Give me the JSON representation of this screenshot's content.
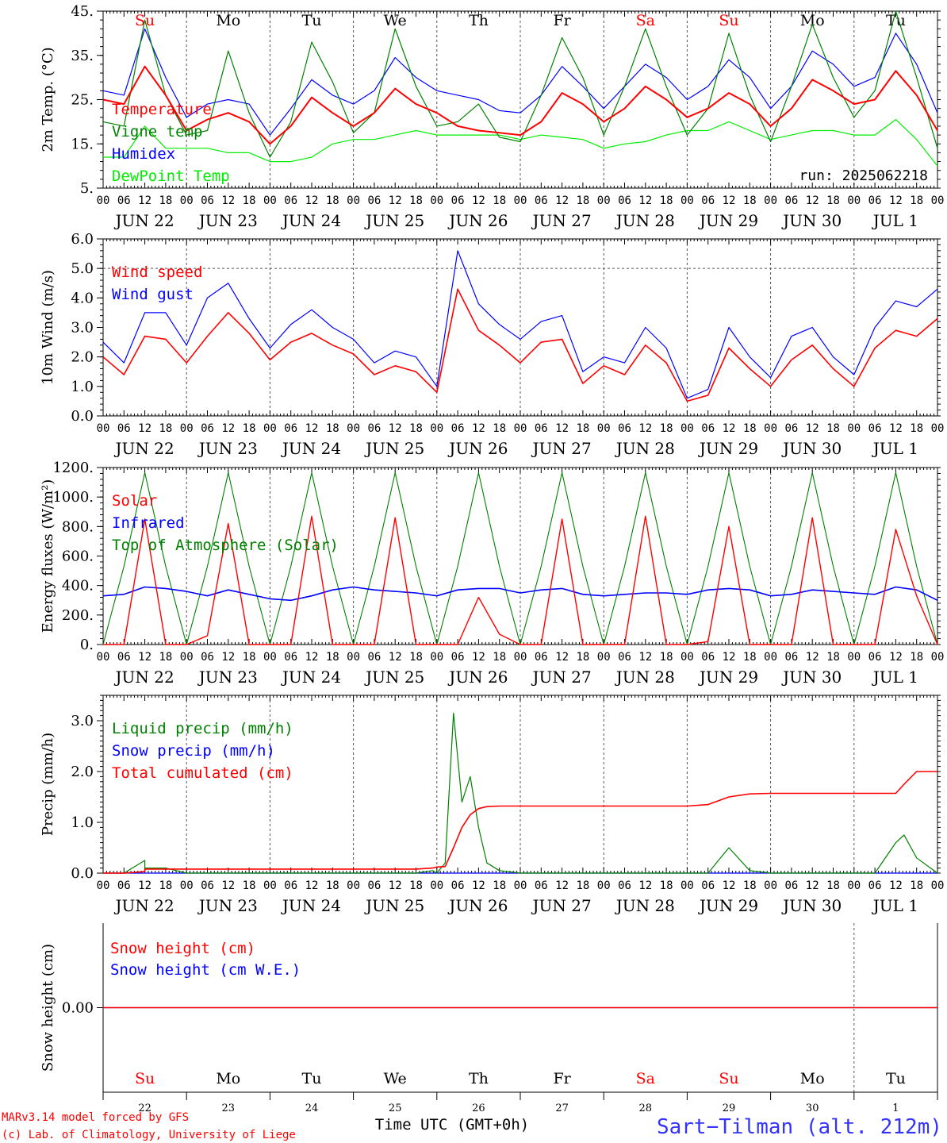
{
  "days": {
    "weekdays": [
      "Su",
      "Mo",
      "Tu",
      "We",
      "Th",
      "Fr",
      "Sa",
      "Su",
      "Mo",
      "Tu"
    ],
    "weekday_colors": [
      "#ff0000",
      "#000000",
      "#000000",
      "#000000",
      "#000000",
      "#000000",
      "#ff0000",
      "#ff0000",
      "#000000",
      "#000000"
    ],
    "dates": [
      "JUN 22",
      "JUN 23",
      "JUN 24",
      "JUN 25",
      "JUN 26",
      "JUN 27",
      "JUN 28",
      "JUN 29",
      "JUN 30",
      "JUL  1"
    ],
    "day_numbers": [
      "22",
      "23",
      "24",
      "25",
      "26",
      "27",
      "28",
      "29",
      "30",
      "1"
    ],
    "hour_ticks": [
      "00",
      "06",
      "12",
      "18"
    ],
    "hour_end": "00"
  },
  "footer": {
    "model_line": "MARv3.14 model forced by GFS",
    "copyright_line": "(c) Lab. of Climatology, University of Liege",
    "x_title": "Time UTC (GMT+0h)",
    "location": "Sart−Tilman (alt. 212m)"
  },
  "colors": {
    "red": "#ff0000",
    "green": "#008000",
    "blue": "#0000ff",
    "lightgreen": "#00ee00",
    "grid": "#555555",
    "axis": "#000000"
  },
  "chart_data": [
    {
      "type": "line",
      "id": "temp",
      "ylabel": "2m Temp. (°C)",
      "ylim": [
        5,
        45
      ],
      "yticks": [
        5,
        15,
        25,
        35,
        45
      ],
      "ytick_labels": [
        "5.",
        "15.",
        "25.",
        "35.",
        "45."
      ],
      "minor_y_step": 2,
      "annotation": "run: 2025062218",
      "x": [
        0,
        0.25,
        0.5,
        0.75,
        1,
        1.25,
        1.5,
        1.75,
        2,
        2.25,
        2.5,
        2.75,
        3,
        3.25,
        3.5,
        3.75,
        4,
        4.25,
        4.5,
        4.75,
        5,
        5.25,
        5.5,
        5.75,
        6,
        6.25,
        6.5,
        6.75,
        7,
        7.25,
        7.5,
        7.75,
        8,
        8.25,
        8.5,
        8.75,
        9,
        9.25,
        9.5,
        9.75,
        10
      ],
      "series": [
        {
          "name": "Temperature",
          "color": "#ff0000",
          "width": 2,
          "values": [
            25,
            24,
            32.5,
            26,
            18,
            20.5,
            22,
            20,
            15,
            19,
            25.5,
            22,
            19,
            22,
            27.5,
            24,
            22,
            19,
            18,
            17.5,
            17,
            20,
            26.5,
            24,
            20,
            23,
            28,
            25,
            21,
            23,
            26.5,
            24,
            19,
            23,
            29.5,
            27,
            24,
            25,
            31.5,
            26,
            18
          ]
        },
        {
          "name": "Vigne temp",
          "color": "#008000",
          "width": 1.2,
          "values": [
            20,
            19,
            43,
            26,
            17,
            18,
            36,
            22,
            12,
            20,
            38,
            29,
            17.5,
            22,
            41,
            28,
            19,
            20,
            24,
            16.5,
            15.5,
            26,
            39,
            30,
            17,
            28,
            41,
            28,
            17,
            23,
            40,
            26,
            15.5,
            28,
            42,
            30,
            21,
            27,
            45,
            30,
            14
          ]
        },
        {
          "name": "Humidex",
          "color": "#0000ff",
          "width": 1.2,
          "values": [
            27,
            26,
            41,
            30,
            21,
            24,
            25,
            24,
            17,
            23,
            29.5,
            26,
            24,
            27,
            34.5,
            30,
            27,
            26,
            25,
            22.5,
            22,
            26,
            32.5,
            28,
            23,
            28,
            33,
            30,
            25,
            28,
            34,
            30,
            23,
            28,
            36,
            33,
            28,
            30,
            40,
            33,
            22
          ]
        },
        {
          "name": "DewPoint Temp",
          "color": "#00ee00",
          "width": 1.2,
          "values": [
            12,
            12,
            19,
            14,
            14,
            14,
            13,
            13,
            11,
            11,
            12,
            15,
            16,
            16,
            17,
            18,
            17,
            17,
            17,
            17,
            16,
            17,
            16.5,
            16,
            14,
            15,
            15.5,
            17,
            18,
            18,
            20,
            18,
            16,
            17,
            18,
            18,
            17,
            17,
            20.5,
            16,
            10
          ]
        }
      ]
    },
    {
      "type": "line",
      "id": "wind",
      "ylabel": "10m Wind (m/s)",
      "ylim": [
        0,
        6
      ],
      "yticks": [
        0,
        1,
        2,
        3,
        4,
        5,
        6
      ],
      "ytick_labels": [
        "0.0",
        "1.0",
        "2.0",
        "3.0",
        "4.0",
        "5.0",
        "6.0"
      ],
      "minor_y_step": 0.2,
      "dashed_y": 5,
      "x": [
        0,
        0.25,
        0.5,
        0.75,
        1,
        1.25,
        1.5,
        1.75,
        2,
        2.25,
        2.5,
        2.75,
        3,
        3.25,
        3.5,
        3.75,
        4,
        4.25,
        4.5,
        4.75,
        5,
        5.25,
        5.5,
        5.75,
        6,
        6.25,
        6.5,
        6.75,
        7,
        7.25,
        7.5,
        7.75,
        8,
        8.25,
        8.5,
        8.75,
        9,
        9.25,
        9.5,
        9.75,
        10
      ],
      "series": [
        {
          "name": "Wind speed",
          "color": "#ff0000",
          "width": 1.6,
          "values": [
            2,
            1.4,
            2.7,
            2.6,
            1.8,
            2.7,
            3.5,
            2.8,
            1.9,
            2.5,
            2.8,
            2.4,
            2.1,
            1.4,
            1.7,
            1.5,
            0.8,
            4.3,
            2.9,
            2.4,
            1.8,
            2.5,
            2.6,
            1.1,
            1.7,
            1.4,
            2.4,
            1.8,
            0.5,
            0.7,
            2.3,
            1.6,
            1.0,
            1.9,
            2.4,
            1.6,
            1.0,
            2.3,
            2.9,
            2.7,
            3.3
          ]
        },
        {
          "name": "Wind gust",
          "color": "#0000ff",
          "width": 1.2,
          "values": [
            2.5,
            1.8,
            3.5,
            3.5,
            2.4,
            4.0,
            4.5,
            3.3,
            2.3,
            3.1,
            3.6,
            3.0,
            2.6,
            1.8,
            2.2,
            2.0,
            1.0,
            5.6,
            3.8,
            3.1,
            2.6,
            3.2,
            3.4,
            1.5,
            2.0,
            1.8,
            3.0,
            2.3,
            0.6,
            0.9,
            3.0,
            2.0,
            1.3,
            2.7,
            3.0,
            2.0,
            1.4,
            3.0,
            3.9,
            3.7,
            4.3
          ]
        }
      ]
    },
    {
      "type": "line",
      "id": "energy",
      "ylabel": "Energy fluxes (W/m²)",
      "ylim": [
        0,
        1200
      ],
      "yticks": [
        0,
        200,
        400,
        600,
        800,
        1000,
        1200
      ],
      "ytick_labels": [
        "0.",
        "200.",
        "400.",
        "600.",
        "800.",
        "1000.",
        "1200."
      ],
      "minor_y_step": 40,
      "x": [
        0,
        0.25,
        0.5,
        0.75,
        1,
        1.25,
        1.5,
        1.75,
        2,
        2.25,
        2.5,
        2.75,
        3,
        3.25,
        3.5,
        3.75,
        4,
        4.25,
        4.5,
        4.75,
        5,
        5.25,
        5.5,
        5.75,
        6,
        6.25,
        6.5,
        6.75,
        7,
        7.25,
        7.5,
        7.75,
        8,
        8.25,
        8.5,
        8.75,
        9,
        9.25,
        9.5,
        9.75,
        10
      ],
      "series": [
        {
          "name": "Solar",
          "color": "#ff0000",
          "width": 1.4,
          "values": [
            0,
            0,
            850,
            0,
            0,
            60,
            820,
            0,
            0,
            0,
            870,
            0,
            0,
            0,
            860,
            0,
            0,
            0,
            320,
            70,
            0,
            0,
            850,
            0,
            0,
            0,
            870,
            0,
            0,
            20,
            800,
            0,
            0,
            0,
            860,
            0,
            0,
            0,
            780,
            330,
            0
          ]
        },
        {
          "name": "Infrared",
          "color": "#0000ff",
          "width": 1.6,
          "values": [
            330,
            340,
            390,
            380,
            360,
            330,
            370,
            340,
            310,
            300,
            330,
            370,
            390,
            370,
            360,
            350,
            330,
            370,
            380,
            380,
            350,
            370,
            380,
            340,
            330,
            340,
            350,
            350,
            340,
            370,
            380,
            370,
            330,
            340,
            370,
            360,
            350,
            340,
            390,
            370,
            300
          ]
        },
        {
          "name": "Top of Atmosphere (Solar)",
          "color": "#008000",
          "width": 1.1,
          "values": [
            0,
            530,
            1165,
            530,
            0,
            530,
            1165,
            530,
            0,
            530,
            1165,
            530,
            0,
            530,
            1165,
            530,
            0,
            530,
            1165,
            530,
            0,
            530,
            1165,
            530,
            0,
            530,
            1165,
            530,
            0,
            530,
            1165,
            530,
            0,
            530,
            1165,
            530,
            0,
            530,
            1165,
            530,
            0
          ]
        }
      ]
    },
    {
      "type": "line",
      "id": "precip",
      "ylabel": "Precip (mm/h)",
      "ylim": [
        0,
        3.5
      ],
      "yticks": [
        0,
        1,
        2,
        3
      ],
      "ytick_labels": [
        "0.0",
        "1.0",
        "2.0",
        "3.0"
      ],
      "minor_y_step": 0.1,
      "x": [
        0,
        0.25,
        0.5,
        0.5,
        0.75,
        1,
        1.25,
        1.5,
        1.75,
        2,
        2.25,
        2.5,
        2.75,
        3,
        3.25,
        3.5,
        3.75,
        3.95,
        4.0,
        4.1,
        4.2,
        4.3,
        4.4,
        4.5,
        4.6,
        4.75,
        5,
        5.25,
        5.5,
        5.75,
        6,
        6.25,
        6.5,
        6.75,
        7,
        7.25,
        7.5,
        7.75,
        8,
        8.25,
        8.5,
        8.75,
        9,
        9.25,
        9.5,
        9.6,
        9.75,
        10
      ],
      "series": [
        {
          "name": "Liquid precip (mm/h)",
          "color": "#008000",
          "width": 1.2,
          "values": [
            0,
            0,
            0.25,
            0.1,
            0.1,
            0,
            0,
            0,
            0,
            0,
            0,
            0,
            0,
            0,
            0,
            0,
            0,
            0.05,
            0,
            0.2,
            3.15,
            1.4,
            1.9,
            0.9,
            0.2,
            0.05,
            0,
            0,
            0,
            0,
            0,
            0,
            0,
            0,
            0,
            0,
            0.5,
            0.05,
            0,
            0,
            0,
            0,
            0,
            0,
            0.6,
            0.75,
            0.3,
            0
          ]
        },
        {
          "name": "Snow precip (mm/h)",
          "color": "#0000ff",
          "width": 1.2,
          "values": [
            0,
            0,
            0,
            0,
            0,
            0,
            0,
            0,
            0,
            0,
            0,
            0,
            0,
            0,
            0,
            0,
            0,
            0,
            0,
            0,
            0,
            0,
            0,
            0,
            0,
            0,
            0,
            0,
            0,
            0,
            0,
            0,
            0,
            0,
            0,
            0,
            0,
            0,
            0,
            0,
            0,
            0,
            0,
            0,
            0,
            0,
            0,
            0
          ]
        },
        {
          "name": "Total cumulated (cm)",
          "color": "#ff0000",
          "width": 1.6,
          "values": [
            0,
            0,
            0.03,
            0.08,
            0.08,
            0.08,
            0.08,
            0.08,
            0.08,
            0.08,
            0.08,
            0.08,
            0.08,
            0.08,
            0.08,
            0.08,
            0.08,
            0.1,
            0.12,
            0.13,
            0.5,
            0.9,
            1.15,
            1.27,
            1.31,
            1.32,
            1.32,
            1.32,
            1.32,
            1.32,
            1.32,
            1.32,
            1.32,
            1.32,
            1.32,
            1.35,
            1.5,
            1.56,
            1.57,
            1.57,
            1.57,
            1.57,
            1.57,
            1.57,
            1.57,
            1.75,
            2.0,
            2.0
          ]
        }
      ]
    },
    {
      "type": "line",
      "id": "snow",
      "ylabel": "Snow height (cm)",
      "ylim": [
        -1,
        1
      ],
      "yticks": [
        0
      ],
      "ytick_labels": [
        "0.00"
      ],
      "minor_y_step": 0,
      "x": [
        0,
        10
      ],
      "series": [
        {
          "name": "Snow height (cm)",
          "color": "#ff0000",
          "width": 1.4,
          "values": [
            0,
            0
          ]
        },
        {
          "name": "Snow height (cm W.E.)",
          "color": "#0000ff",
          "width": 1.2,
          "values": [
            0,
            0
          ]
        }
      ]
    }
  ]
}
